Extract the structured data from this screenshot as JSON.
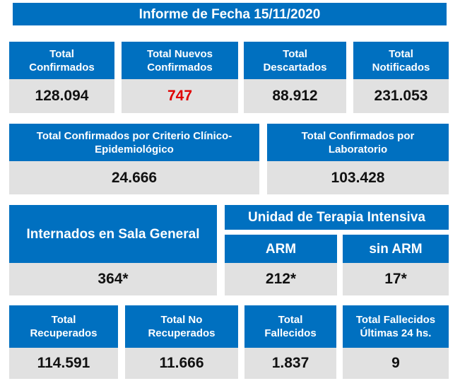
{
  "title": "Informe de Fecha 15/11/2020",
  "row1": [
    {
      "label": "Total Confirmados",
      "value": "128.094"
    },
    {
      "label": "Total Nuevos Confirmados",
      "value": "747"
    },
    {
      "label": "Total Descartados",
      "value": "88.912"
    },
    {
      "label": "Total Notificados",
      "value": "231.053"
    }
  ],
  "row2": [
    {
      "label": "Total Confirmados por Criterio Clínico-Epidemiológico",
      "value": "24.666"
    },
    {
      "label": "Total Confirmados por Laboratorio",
      "value": "103.428"
    }
  ],
  "row3": {
    "sala": {
      "label": "Internados en Sala General",
      "value": "364*"
    },
    "uti": {
      "label": "Unidad de Terapia Intensiva",
      "arm": {
        "label": "ARM",
        "value": "212*"
      },
      "sin_arm": {
        "label": "sin ARM",
        "value": "17*"
      }
    }
  },
  "row4": [
    {
      "label": "Total Recuperados",
      "value": "114.591"
    },
    {
      "label": "Total No Recuperados",
      "value": "11.666"
    },
    {
      "label": "Total Fallecidos",
      "value": "1.837"
    },
    {
      "label": "Total Fallecidos Últimas 24 hs.",
      "value": "9"
    }
  ],
  "colors": {
    "header": "#0070C0",
    "value_bg": "#E1E1E1",
    "highlight": "#E00000"
  }
}
